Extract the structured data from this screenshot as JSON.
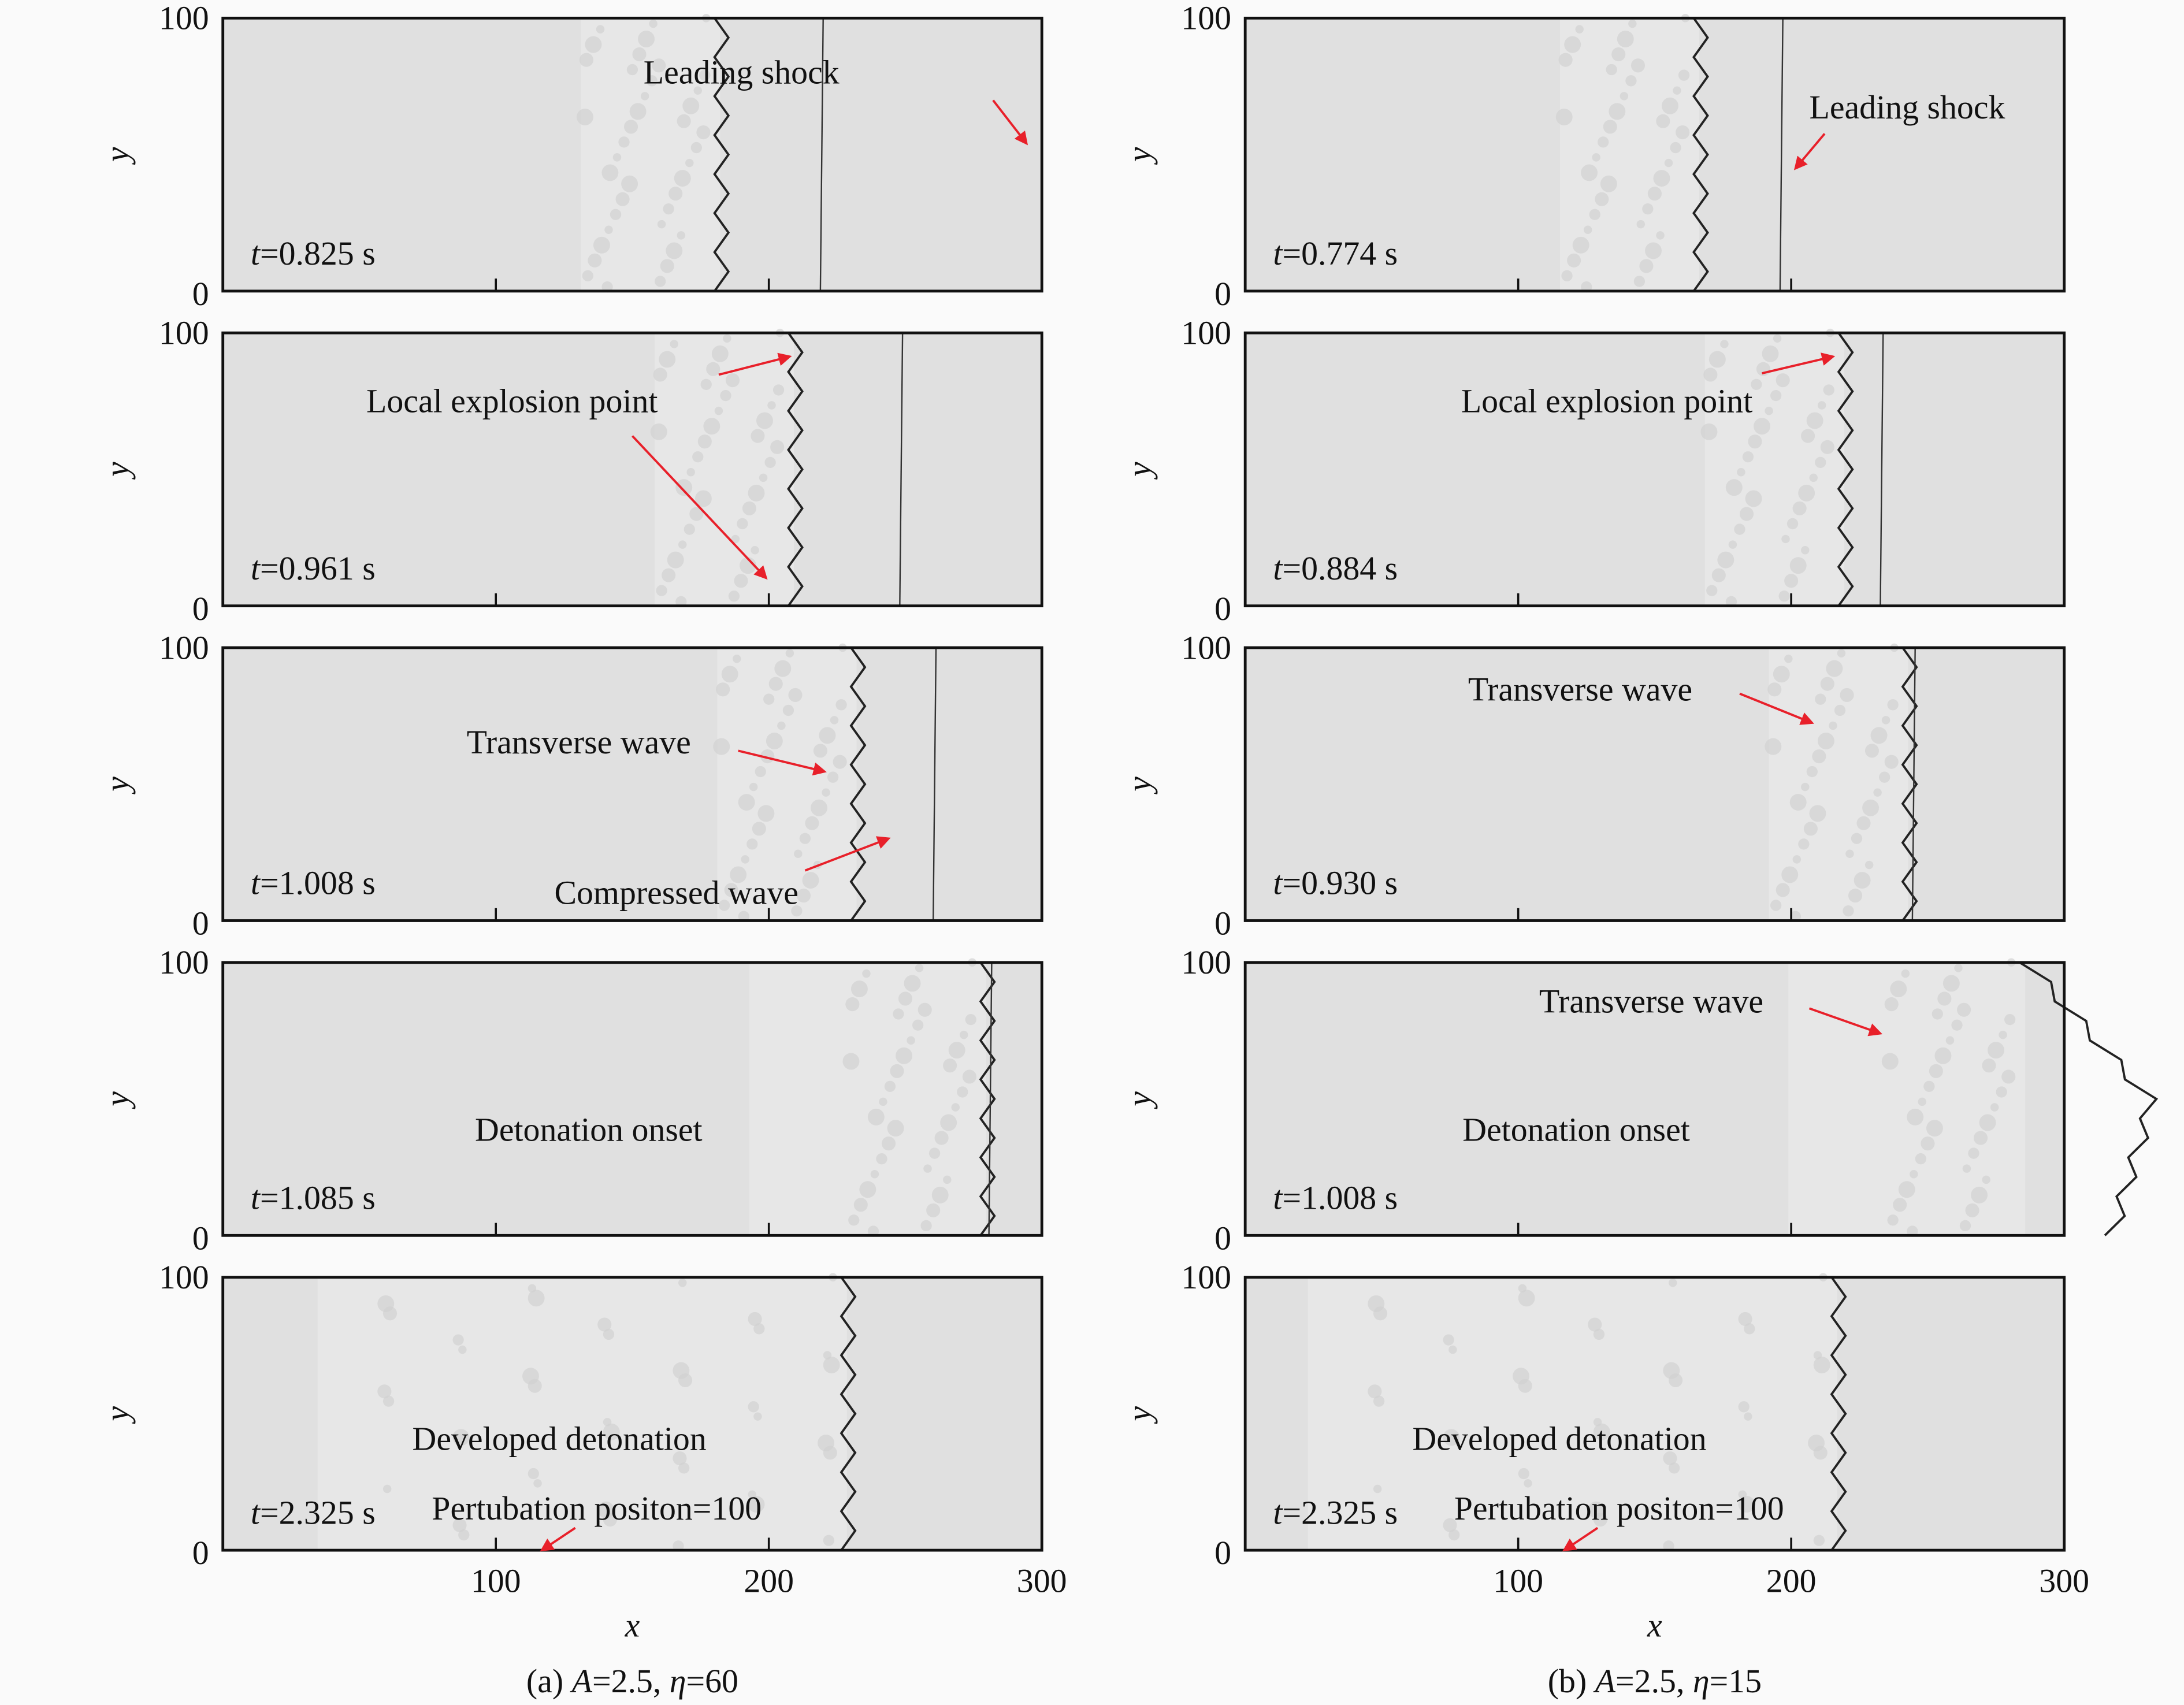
{
  "figure": {
    "x_axis_label": "x",
    "y_axis_label": "y",
    "x_ticks": [
      "100",
      "200",
      "300"
    ],
    "y_ticks": [
      "0",
      "100"
    ],
    "arrow_color": "#e8202a",
    "panel_color": "#e0e0e0",
    "columns": [
      {
        "caption": {
          "prefix": "(a) ",
          "A_var": "A",
          "A_val": "=2.5, ",
          "eta_var": "η",
          "eta_val": "=60"
        },
        "panels": [
          {
            "t_var": "t",
            "time": "=0.825 s",
            "labels": [
              "Leading shock"
            ]
          },
          {
            "t_var": "t",
            "time": "=0.961 s",
            "labels": [
              "Local explosion point"
            ]
          },
          {
            "t_var": "t",
            "time": "=1.008 s",
            "labels": [
              "Transverse wave",
              "Compressed wave"
            ]
          },
          {
            "t_var": "t",
            "time": "=1.085 s",
            "labels": [
              "Detonation onset"
            ]
          },
          {
            "t_var": "t",
            "time": "=2.325 s",
            "labels": [
              "Developed detonation",
              "Pertubation positon=100"
            ]
          }
        ]
      },
      {
        "caption": {
          "prefix": "(b) ",
          "A_var": "A",
          "A_val": "=2.5, ",
          "eta_var": "η",
          "eta_val": "=15"
        },
        "panels": [
          {
            "t_var": "t",
            "time": "=0.774 s",
            "labels": [
              "Leading shock"
            ]
          },
          {
            "t_var": "t",
            "time": "=0.884 s",
            "labels": [
              "Local explosion point"
            ]
          },
          {
            "t_var": "t",
            "time": "=0.930 s",
            "labels": [
              "Transverse wave"
            ]
          },
          {
            "t_var": "t",
            "time": "=1.008 s",
            "labels": [
              "Transverse wave",
              "Detonation onset"
            ]
          },
          {
            "t_var": "t",
            "time": "=2.325 s",
            "labels": [
              "Developed detonation",
              "Pertubation positon=100"
            ]
          }
        ]
      }
    ]
  }
}
